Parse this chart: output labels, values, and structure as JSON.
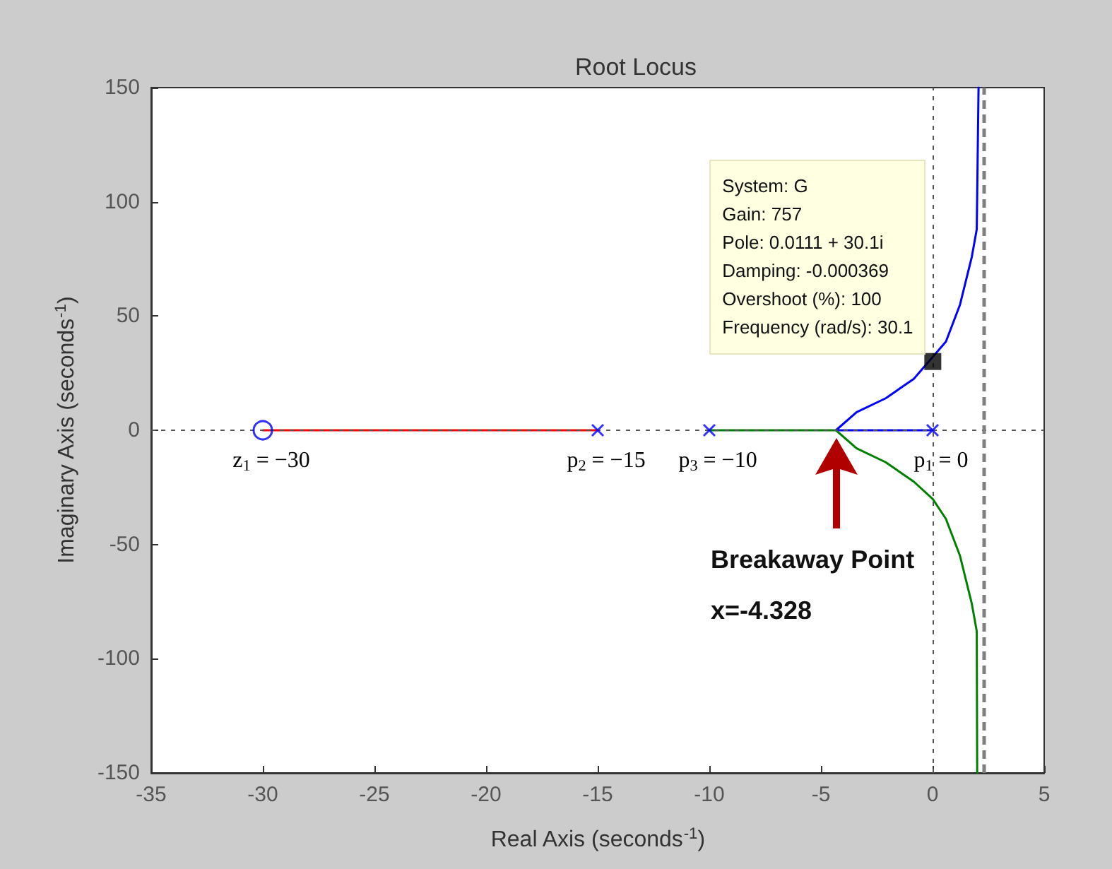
{
  "chart_data": {
    "type": "line",
    "title": "Root Locus",
    "xlabel": "Real Axis (seconds$^{-1}$)",
    "ylabel": "Imaginary Axis (seconds$^{-1}$)",
    "xlim": [
      -35,
      5
    ],
    "xticks": [
      -35,
      -30,
      -25,
      -20,
      -15,
      -10,
      -5,
      0,
      5
    ],
    "ylim": [
      -150,
      150
    ],
    "yticks": [
      -150,
      -100,
      -50,
      0,
      50,
      100,
      150
    ],
    "grid": false,
    "series": [
      {
        "type": "line",
        "color": "#ff0000",
        "x": [
          -30,
          -15
        ],
        "values": [
          0,
          0
        ]
      },
      {
        "type": "line",
        "color": "#0000ff",
        "x": [
          0,
          -4.328,
          -3.4,
          -2.1,
          -0.84,
          0.6,
          1.23,
          1.76,
          1.98,
          2.06
        ],
        "values": [
          0,
          0,
          7.9,
          14,
          22.5,
          38.8,
          55,
          76,
          88,
          150
        ]
      },
      {
        "type": "line",
        "color": "#008000",
        "x": [
          -10,
          -4.328,
          -3.4,
          -2.1,
          -0.84,
          0.0111,
          0.6,
          1.23,
          1.76,
          1.98,
          2.0
        ],
        "values": [
          0,
          0,
          -7.9,
          -14,
          -22.5,
          -30.1,
          -38.8,
          -55,
          -76,
          -88,
          -150
        ]
      },
      {
        "type": "scatter",
        "color": "#0000ff",
        "marker": "cross",
        "x": [
          -15,
          -10,
          0
        ],
        "values": [
          0,
          0,
          0
        ]
      },
      {
        "type": "scatter",
        "color": "#0000ff",
        "marker": "circle",
        "x": [
          -30
        ],
        "values": [
          0
        ]
      },
      {
        "type": "scatter",
        "color": "#000000",
        "marker": "square",
        "x": [
          0.0111
        ],
        "values": [
          30.1
        ]
      }
    ],
    "ref_lines": [
      {
        "axis": "x",
        "value": 0,
        "color": "#555555",
        "line_style": "dotted"
      },
      {
        "axis": "y",
        "value": 0,
        "color": "#555555",
        "line_style": "dotted"
      },
      {
        "axis": "x",
        "value": 2.3,
        "color": "#808080",
        "line_style": "dashed"
      }
    ],
    "annotations": [
      {
        "text": "System: G\nGain: 757\nPole: 0.0111 + 30.1i\nDamping: -0.000369\nOvershoot (%): 100\nFrequency (rad/s): 30.1",
        "x": 0.0111,
        "y": 30.1
      },
      {
        "text": "z$_{1}$ = −30",
        "x": -30,
        "y": 0
      },
      {
        "text": "p$_{2}$ = −15",
        "x": -15,
        "y": 0
      },
      {
        "text": "p$_{3}$ = −10",
        "x": -10,
        "y": 0
      },
      {
        "text": "p$_{1}$ = 0",
        "x": 0,
        "y": 0
      },
      "Breakaway Point\nx=-4.328"
    ]
  }
}
